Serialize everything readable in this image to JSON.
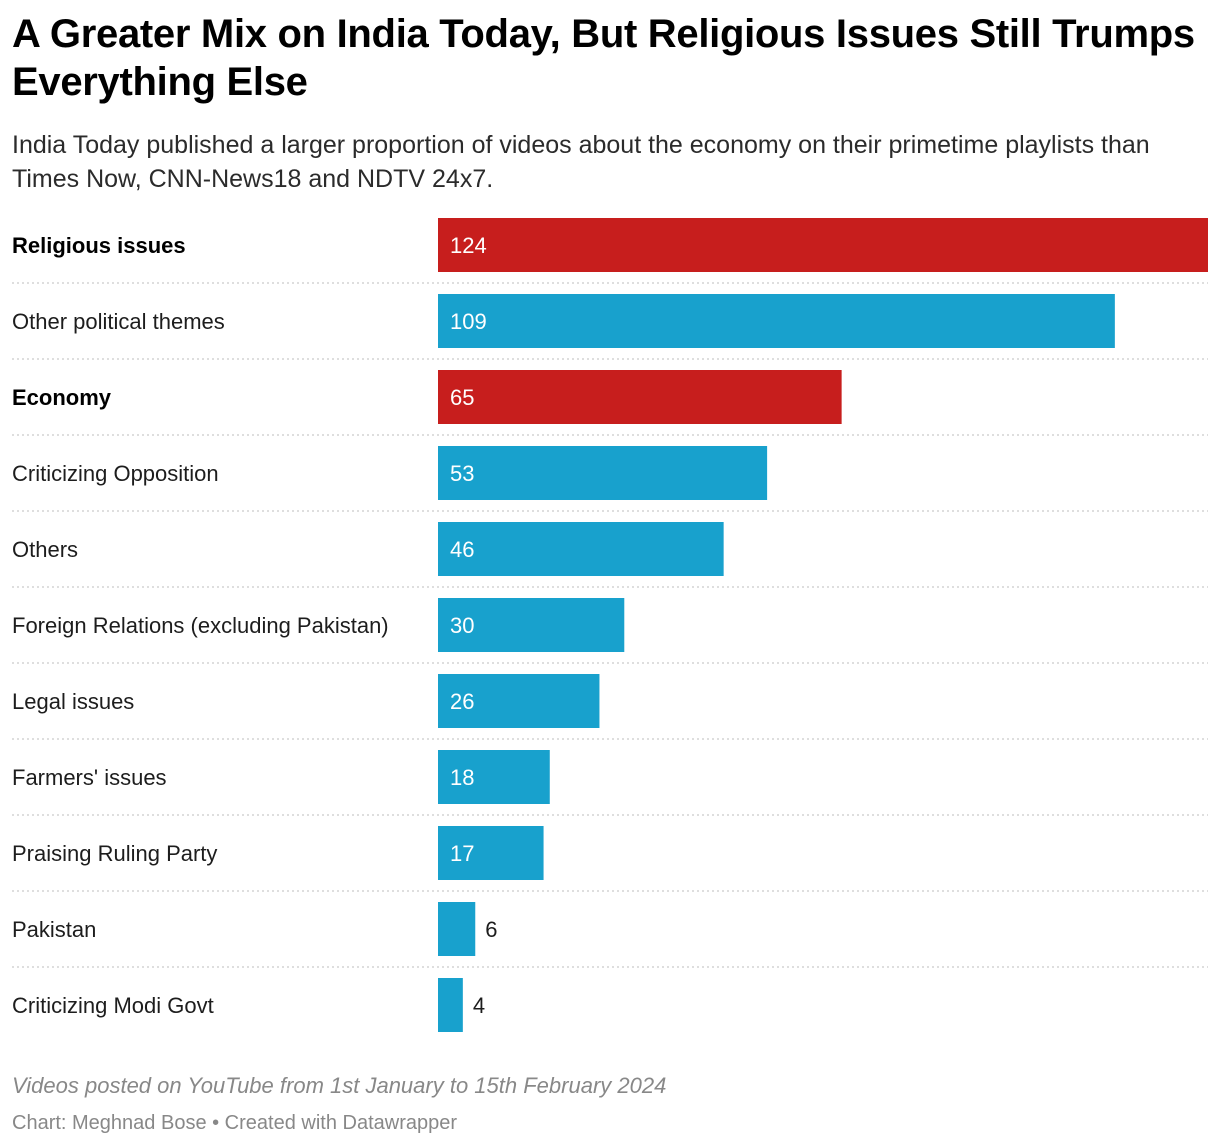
{
  "header": {
    "title": "A Greater Mix on India Today, But Religious Issues Still Trumps Everything Else",
    "subtitle": "India Today published a larger proportion of videos about the economy on their primetime playlists than Times Now, CNN-News18 and NDTV 24x7."
  },
  "notes": "Videos posted on YouTube from 1st January to 15th February 2024",
  "footer": "Chart: Meghnad Bose • Created with Datawrapper",
  "colors": {
    "highlight": "#c71e1d",
    "default": "#18a1cd",
    "divider": "#d4d4d4",
    "label_inside": "#ffffff",
    "label_outside": "#1d1d1d"
  },
  "chart_data": {
    "type": "bar",
    "orientation": "horizontal",
    "title": "A Greater Mix on India Today, But Religious Issues Still Trumps Everything Else",
    "categories": [
      "Religious issues",
      "Other political themes",
      "Economy",
      "Criticizing Opposition",
      "Others",
      "Foreign Relations (excluding Pakistan)",
      "Legal issues",
      "Farmers' issues",
      "Praising Ruling Party",
      "Pakistan",
      "Criticizing Modi Govt"
    ],
    "values": [
      124,
      109,
      65,
      53,
      46,
      30,
      26,
      18,
      17,
      6,
      4
    ],
    "highlighted": [
      true,
      false,
      true,
      false,
      false,
      false,
      false,
      false,
      false,
      false,
      false
    ],
    "xlim": [
      0,
      124
    ],
    "grid": false,
    "legend": "none",
    "xlabel": "",
    "ylabel": ""
  }
}
